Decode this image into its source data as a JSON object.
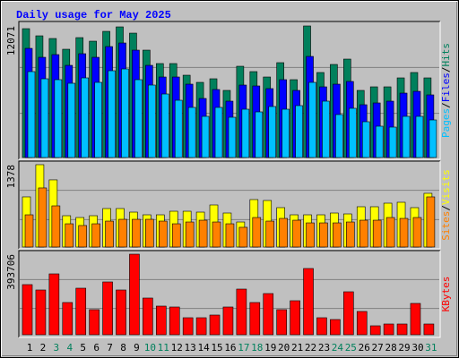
{
  "chart_data": [
    {
      "type": "bar",
      "title": "Daily usage for May 2025",
      "separator": "/",
      "series": [
        {
          "name": "Hits",
          "color": "#00805C",
          "values": [
            11823,
            11166,
            10920,
            9934,
            11001,
            10673,
            11576,
            11987,
            11412,
            9852,
            8621,
            8621,
            7553,
            6896,
            7225,
            6158,
            8374,
            7882,
            7389,
            8703,
            7143,
            12071,
            7800,
            8539,
            9031,
            6158,
            6486,
            6486,
            7307,
            7800,
            7307
          ]
        },
        {
          "name": "Files",
          "color": "#0000FF",
          "values": [
            10016,
            9195,
            9442,
            8456,
            9524,
            9195,
            10180,
            10509,
            9852,
            8456,
            7389,
            7389,
            6732,
            5419,
            6240,
            5172,
            6650,
            6568,
            6322,
            7143,
            6158,
            9277,
            6486,
            6732,
            6979,
            4844,
            5008,
            5172,
            5911,
            6075,
            5747
          ]
        },
        {
          "name": "Pages",
          "color": "#00C0FF",
          "values": [
            7882,
            7225,
            7143,
            6814,
            7307,
            6896,
            7964,
            8128,
            7143,
            6650,
            5829,
            5254,
            4598,
            3777,
            4598,
            3695,
            4433,
            4187,
            4680,
            4433,
            4762,
            6896,
            5172,
            3941,
            4516,
            3284,
            2874,
            2791,
            3777,
            3777,
            3448
          ]
        }
      ],
      "ylim": [
        0,
        12071
      ],
      "yticks": [
        12071
      ]
    },
    {
      "type": "bar",
      "series": [
        {
          "name": "Visits",
          "color": "#FFFF00",
          "values": [
            839,
            1378,
            1124,
            524,
            494,
            524,
            644,
            644,
            584,
            539,
            539,
            599,
            599,
            584,
            704,
            569,
            419,
            794,
            779,
            659,
            539,
            539,
            539,
            569,
            554,
            674,
            674,
            734,
            749,
            659,
            899
          ]
        },
        {
          "name": "Sites",
          "color": "#FF8000",
          "values": [
            539,
            989,
            689,
            389,
            360,
            389,
            434,
            464,
            464,
            464,
            434,
            389,
            419,
            449,
            419,
            389,
            330,
            494,
            434,
            479,
            449,
            404,
            404,
            404,
            419,
            449,
            449,
            494,
            479,
            494,
            839
          ]
        }
      ],
      "ylim": [
        0,
        1378
      ],
      "yticks": [
        1378
      ]
    },
    {
      "type": "bar",
      "categories": [
        "1",
        "2",
        "3",
        "4",
        "5",
        "6",
        "7",
        "8",
        "9",
        "10",
        "11",
        "12",
        "13",
        "14",
        "15",
        "16",
        "17",
        "18",
        "19",
        "20",
        "21",
        "22",
        "23",
        "24",
        "25",
        "26",
        "27",
        "28",
        "29",
        "30",
        "31"
      ],
      "category_colors": [
        "#000000",
        "#000000",
        "#00805C",
        "#00805C",
        "#000000",
        "#000000",
        "#000000",
        "#000000",
        "#000000",
        "#00805C",
        "#00805C",
        "#000000",
        "#000000",
        "#000000",
        "#000000",
        "#000000",
        "#00805C",
        "#00805C",
        "#000000",
        "#000000",
        "#000000",
        "#000000",
        "#000000",
        "#00805C",
        "#00805C",
        "#000000",
        "#000000",
        "#000000",
        "#000000",
        "#000000",
        "#00805C"
      ],
      "series": [
        {
          "name": "KBytes",
          "color": "#FF0000",
          "values": [
            244972,
            218725,
            297466,
            157482,
            227474,
            122486,
            258096,
            218725,
            393706,
            179355,
            139984,
            135610,
            83116,
            83116,
            96239,
            135610,
            223100,
            157482,
            201227,
            122486,
            166231,
            323713,
            83116,
            74367,
            209976,
            113737,
            43745,
            52494,
            52494,
            153108,
            52494
          ]
        }
      ],
      "ylim": [
        0,
        393706
      ],
      "yticks": [
        393706
      ]
    }
  ]
}
